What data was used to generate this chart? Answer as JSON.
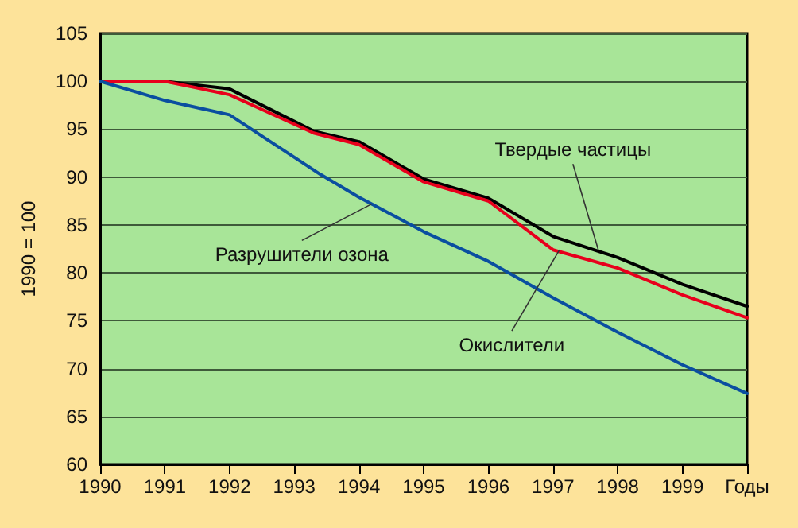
{
  "chart_data": {
    "type": "line",
    "ylabel": "1990 = 100",
    "xlim": [
      1990,
      2000
    ],
    "xticks": [
      1990,
      1991,
      1992,
      1993,
      1994,
      1995,
      1996,
      1997,
      1998,
      1999,
      {
        "value": 2000,
        "label": "Годы"
      }
    ],
    "ylim": [
      60,
      105
    ],
    "yticks": [
      60,
      65,
      70,
      75,
      80,
      85,
      90,
      95,
      100,
      105
    ],
    "grid": "y",
    "marker": "none",
    "line_style": "solid",
    "series": [
      {
        "color": "#000000",
        "x": [
          1990,
          1991,
          1992,
          1993.3,
          1994,
          1995,
          1996,
          1997,
          1998,
          1999,
          2000
        ],
        "values": [
          100,
          100,
          99.2,
          94.8,
          93.7,
          89.8,
          87.8,
          83.8,
          81.6,
          78.8,
          76.5
        ]
      },
      {
        "color": "#e8001c",
        "x": [
          1990,
          1991,
          1992,
          1993.3,
          1994,
          1995,
          1996,
          1997,
          1998,
          1999,
          2000
        ],
        "values": [
          100,
          100,
          98.6,
          94.6,
          93.4,
          89.5,
          87.5,
          82.4,
          80.5,
          77.7,
          75.3
        ]
      },
      {
        "color": "#0a4ea0",
        "x": [
          1990,
          1991,
          1992,
          1993.4,
          1994,
          1995,
          1996,
          1997,
          1998,
          1999,
          2000
        ],
        "values": [
          100,
          98.0,
          96.5,
          90.3,
          87.9,
          84.3,
          81.2,
          77.4,
          73.8,
          70.4,
          67.4
        ]
      }
    ],
    "annotations": [
      {
        "text": "Твердые частицы",
        "x": 1997.7,
        "y": 82.4
      },
      {
        "text": "Разрушители озона",
        "x": 1994.2,
        "y": 87.2
      },
      {
        "text": "Окислители",
        "x": 1997.1,
        "y": 82.4
      }
    ]
  }
}
